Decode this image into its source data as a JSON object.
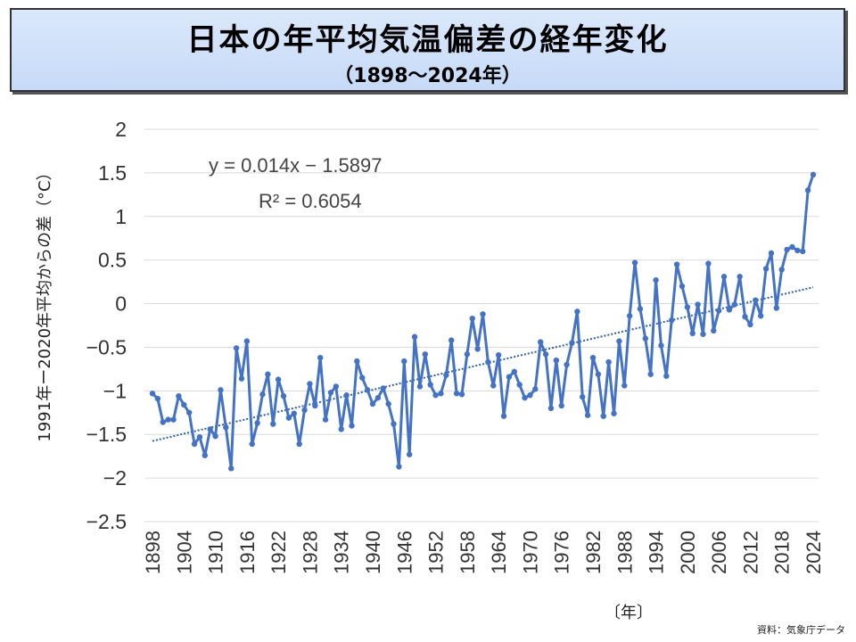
{
  "title": "日本の年平均気温偏差の経年変化",
  "subtitle": "（1898〜2024年）",
  "chart_data": {
    "type": "line",
    "title": "日本の年平均気温偏差の経年変化",
    "ylabel": "1991年ー2020年平均からの差（°C）",
    "xlabel": "〔年〕",
    "ylim": [
      -2.5,
      2
    ],
    "yticks": [
      2,
      1.5,
      1,
      0.5,
      0,
      -0.5,
      -1,
      -1.5,
      -2,
      -2.5
    ],
    "ytick_labels": [
      "2",
      "1.5",
      "1",
      "0.5",
      "0",
      "−0.5",
      "−1",
      "−1.5",
      "−2",
      "−2.5"
    ],
    "xticks": [
      1898,
      1904,
      1910,
      1916,
      1922,
      1928,
      1934,
      1940,
      1946,
      1952,
      1958,
      1964,
      1970,
      1976,
      1982,
      1988,
      1994,
      2000,
      2006,
      2012,
      2018,
      2024
    ],
    "x_start": 1898,
    "series": [
      {
        "name": "年平均気温偏差",
        "color": "#4472c4",
        "values": [
          -1.03,
          -1.09,
          -1.36,
          -1.33,
          -1.33,
          -1.06,
          -1.16,
          -1.25,
          -1.61,
          -1.53,
          -1.74,
          -1.44,
          -1.52,
          -0.99,
          -1.42,
          -1.89,
          -0.51,
          -0.86,
          -0.43,
          -1.61,
          -1.37,
          -1.04,
          -0.81,
          -1.38,
          -0.87,
          -1.06,
          -1.31,
          -1.26,
          -1.61,
          -1.22,
          -0.92,
          -1.17,
          -0.62,
          -1.33,
          -1.02,
          -0.95,
          -1.44,
          -1.05,
          -1.4,
          -0.66,
          -0.85,
          -0.99,
          -1.15,
          -1.08,
          -0.97,
          -1.15,
          -1.38,
          -1.87,
          -0.66,
          -1.73,
          -0.38,
          -0.95,
          -0.58,
          -0.93,
          -1.05,
          -1.03,
          -0.82,
          -0.42,
          -1.03,
          -1.04,
          -0.58,
          -0.17,
          -0.52,
          -0.12,
          -0.67,
          -0.94,
          -0.59,
          -1.29,
          -0.84,
          -0.78,
          -0.93,
          -1.08,
          -1.05,
          -0.98,
          -0.44,
          -0.58,
          -1.2,
          -0.65,
          -1.17,
          -0.7,
          -0.45,
          -0.09,
          -1.07,
          -1.28,
          -0.62,
          -0.81,
          -1.29,
          -0.67,
          -1.26,
          -0.43,
          -0.94,
          -0.14,
          0.47,
          -0.06,
          -0.4,
          -0.81,
          0.27,
          -0.48,
          -0.83,
          -0.19,
          0.45,
          0.2,
          -0.04,
          -0.34,
          -0.01,
          -0.35,
          0.46,
          -0.31,
          -0.08,
          0.31,
          -0.07,
          -0.01,
          0.31,
          -0.15,
          -0.24,
          0.04,
          -0.14,
          0.4,
          0.58,
          -0.05,
          0.39,
          0.62,
          0.65,
          0.61,
          0.6,
          1.3,
          1.48
        ]
      }
    ],
    "trend": {
      "name": "y = 0.014x - 1.5897",
      "slope": 0.014,
      "intercept": -1.5897,
      "style": "dotted"
    },
    "annotations": [
      "y = 0.014x − 1.5897",
      "R² = 0.6054"
    ]
  },
  "source": "資料：気象庁データ"
}
